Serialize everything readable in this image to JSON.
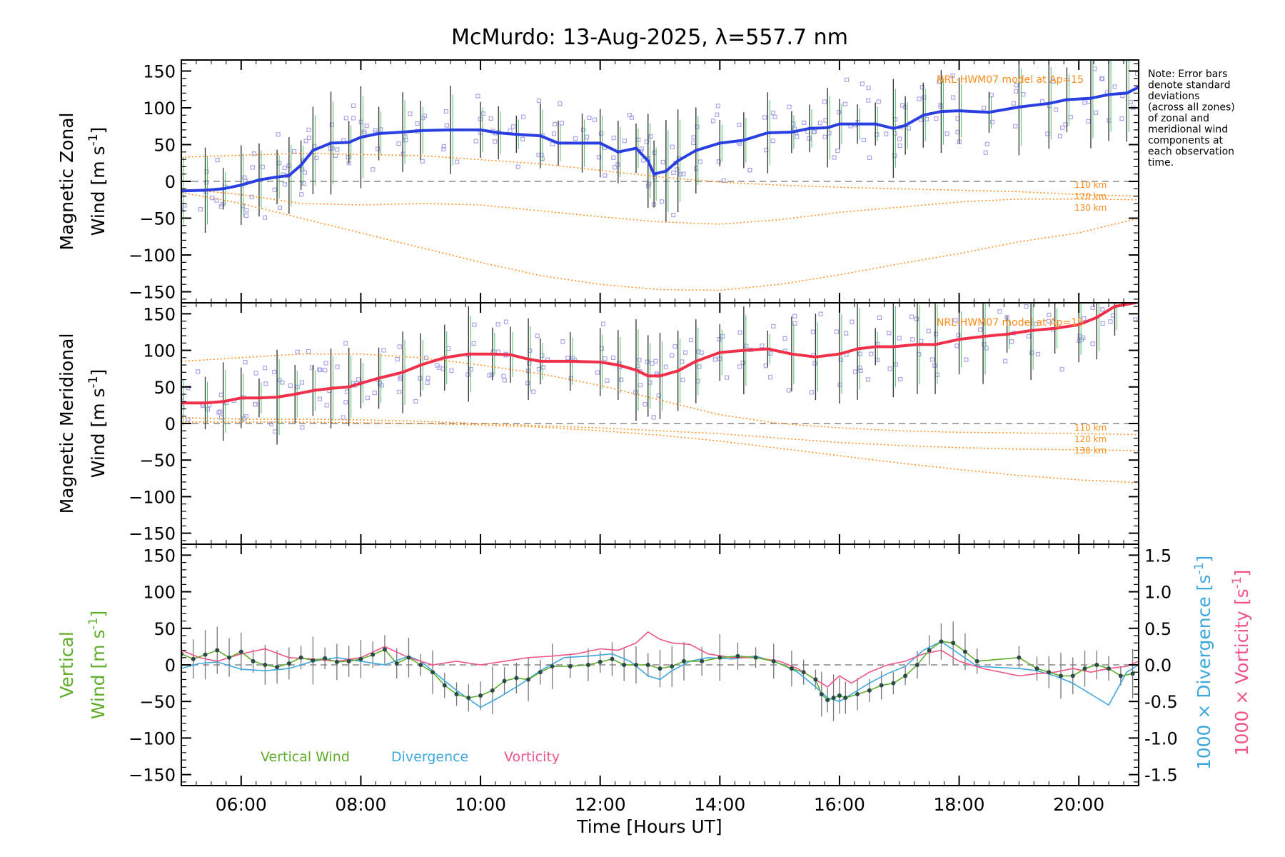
{
  "chart_data": {
    "type": "line",
    "title": "McMurdo: 13-Aug-2025, λ=557.7 nm",
    "xlabel": "Time [Hours UT]",
    "xlim": [
      5.0,
      21.0
    ],
    "xticks": [
      {
        "value": 6,
        "label": "06:00"
      },
      {
        "value": 8,
        "label": "08:00"
      },
      {
        "value": 10,
        "label": "10:00"
      },
      {
        "value": 12,
        "label": "12:00"
      },
      {
        "value": 14,
        "label": "14:00"
      },
      {
        "value": 16,
        "label": "16:00"
      },
      {
        "value": 18,
        "label": "18:00"
      },
      {
        "value": 20,
        "label": "20:00"
      }
    ],
    "note": [
      "Note: Error bars",
      "denote standard",
      "deviations",
      "(across all zones)",
      "of zonal and",
      "meridional wind",
      "components at",
      "each observation",
      "time."
    ],
    "colors": {
      "zonal": "#2a3fe0",
      "meridional": "#f0304a",
      "vertical": "#5fae2a",
      "divergence": "#3ea8de",
      "vorticity": "#f0558a",
      "model": "#ff8c1a",
      "scatter": "#a9a6e8",
      "zero_line": "#9a9a9a",
      "error_bar": "#3c3c3c"
    },
    "panels": [
      {
        "id": "zonal",
        "ylabel": [
          "Magnetic Zonal",
          "Wind [m s",
          "-1",
          "]"
        ],
        "ylim": [
          -165,
          165
        ],
        "yticks": [
          150,
          100,
          50,
          0,
          -50,
          -100,
          -150
        ],
        "model_label": "NRL-HWM07 model at Ap=15",
        "model_heights": [
          "110 km",
          "120 km",
          "130 km"
        ],
        "series": [
          {
            "name": "Zonal Wind",
            "color": "#2a3fe0",
            "x": [
              5.0,
              5.4,
              5.7,
              6.0,
              6.3,
              6.6,
              6.8,
              7.0,
              7.2,
              7.5,
              7.8,
              8.0,
              8.3,
              8.7,
              9.0,
              9.5,
              10.0,
              10.3,
              10.6,
              11.0,
              11.3,
              11.7,
              12.0,
              12.3,
              12.6,
              12.8,
              12.9,
              13.1,
              13.3,
              13.6,
              14.0,
              14.4,
              14.8,
              15.2,
              15.5,
              15.8,
              16.0,
              16.3,
              16.6,
              16.9,
              17.1,
              17.4,
              17.7,
              18.0,
              18.5,
              19.0,
              19.5,
              19.8,
              20.2,
              20.5,
              20.8,
              21.0
            ],
            "values": [
              -13,
              -12,
              -10,
              -5,
              2,
              6,
              8,
              22,
              42,
              52,
              53,
              60,
              65,
              67,
              69,
              70,
              70,
              66,
              64,
              62,
              52,
              52,
              52,
              40,
              45,
              28,
              10,
              14,
              28,
              42,
              52,
              56,
              66,
              67,
              72,
              73,
              78,
              78,
              78,
              72,
              76,
              90,
              95,
              96,
              94,
              101,
              106,
              111,
              113,
              118,
              120,
              128
            ]
          },
          {
            "name": "HWM07 110 km",
            "color": "#ff8c1a",
            "dotted": true,
            "x": [
              5,
              7,
              9,
              11,
              13,
              14,
              15,
              16,
              17,
              18,
              19,
              20,
              21
            ],
            "values": [
              33,
              38,
              35,
              24,
              6,
              -1,
              -5,
              -8,
              -10,
              -12,
              -14,
              -18,
              -20
            ]
          },
          {
            "name": "HWM07 120 km",
            "color": "#ff8c1a",
            "dotted": true,
            "x": [
              5,
              6,
              7,
              8,
              9,
              10,
              11,
              12,
              13,
              14,
              15,
              16,
              17,
              18,
              19,
              20,
              21
            ],
            "values": [
              -10,
              -18,
              -30,
              -32,
              -30,
              -32,
              -40,
              -48,
              -55,
              -58,
              -52,
              -42,
              -35,
              -28,
              -24,
              -24,
              -25
            ]
          },
          {
            "name": "HWM07 130 km",
            "color": "#ff8c1a",
            "dotted": true,
            "x": [
              5,
              6,
              7,
              8,
              9,
              10,
              11,
              12,
              13,
              14,
              15,
              16,
              17,
              18,
              19,
              20,
              21
            ],
            "values": [
              -15,
              -30,
              -50,
              -70,
              -90,
              -110,
              -128,
              -140,
              -147,
              -148,
              -140,
              -127,
              -112,
              -98,
              -82,
              -70,
              -50
            ]
          }
        ]
      },
      {
        "id": "meridional",
        "ylabel": [
          "Magnetic Meridional",
          "Wind [m s",
          "-1",
          "]"
        ],
        "ylim": [
          -165,
          165
        ],
        "yticks": [
          150,
          100,
          50,
          0,
          -50,
          -100,
          -150
        ],
        "model_label": "NRL-HWM07 model at Ap=15",
        "model_heights": [
          "110 km",
          "120 km",
          "130 km"
        ],
        "series": [
          {
            "name": "Meridional Wind",
            "color": "#f0304a",
            "x": [
              5.0,
              5.4,
              5.7,
              6.0,
              6.3,
              6.6,
              6.9,
              7.2,
              7.5,
              7.8,
              8.0,
              8.3,
              8.7,
              9.0,
              9.4,
              9.8,
              10.2,
              10.5,
              10.8,
              11.0,
              11.5,
              12.0,
              12.3,
              12.6,
              12.8,
              13.0,
              13.3,
              13.6,
              14.0,
              14.4,
              14.8,
              15.2,
              15.6,
              16.0,
              16.3,
              16.6,
              16.9,
              17.3,
              17.6,
              18.0,
              18.4,
              18.8,
              19.2,
              19.6,
              20.0,
              20.3,
              20.6,
              21.0
            ],
            "values": [
              28,
              28,
              30,
              35,
              35,
              36,
              40,
              45,
              48,
              50,
              55,
              62,
              70,
              80,
              90,
              95,
              95,
              94,
              88,
              85,
              85,
              84,
              80,
              73,
              65,
              65,
              72,
              85,
              97,
              100,
              102,
              95,
              91,
              95,
              102,
              105,
              105,
              108,
              108,
              115,
              119,
              122,
              127,
              130,
              135,
              145,
              160,
              166
            ]
          },
          {
            "name": "HWM07 110 km",
            "color": "#ff8c1a",
            "dotted": true,
            "x": [
              5,
              6,
              7,
              8,
              9,
              10,
              11,
              12,
              13,
              14,
              15,
              16,
              17,
              18,
              19,
              20,
              21
            ],
            "values": [
              85,
              90,
              95,
              95,
              90,
              80,
              68,
              52,
              32,
              12,
              0,
              -6,
              -10,
              -12,
              -13,
              -14,
              -15
            ]
          },
          {
            "name": "HWM07 120 km",
            "color": "#ff8c1a",
            "dotted": true,
            "x": [
              5,
              6,
              7,
              8,
              9,
              10,
              11,
              12,
              13,
              14,
              15,
              16,
              17,
              18,
              19,
              20,
              21
            ],
            "values": [
              8,
              6,
              6,
              5,
              3,
              0,
              -3,
              -6,
              -10,
              -14,
              -20,
              -26,
              -30,
              -33,
              -35,
              -36,
              -37
            ]
          },
          {
            "name": "HWM07 130 km",
            "color": "#ff8c1a",
            "dotted": true,
            "x": [
              5,
              6,
              7,
              8,
              9,
              10,
              11,
              12,
              13,
              14,
              15,
              16,
              17,
              18,
              19,
              20,
              21
            ],
            "values": [
              2,
              2,
              2,
              1,
              0,
              -2,
              -5,
              -10,
              -16,
              -24,
              -34,
              -44,
              -54,
              -63,
              -71,
              -77,
              -81
            ]
          }
        ]
      },
      {
        "id": "vertical",
        "ylabel_left": [
          "Vertical",
          "Wind [m s",
          "-1",
          "]"
        ],
        "ylim": [
          -165,
          165
        ],
        "yticks": [
          150,
          100,
          50,
          0,
          -50,
          -100,
          -150
        ],
        "ylim_right": [
          -1.65,
          1.65
        ],
        "yticks_right": [
          "1.5",
          "1.0",
          "0.5",
          "0.0",
          "-0.5",
          "-1.0",
          "-1.5"
        ],
        "ylabel_right_1": [
          "1000 × Divergence [s",
          "-1",
          "]"
        ],
        "ylabel_right_2": [
          "1000 × Vorticity [s",
          "-1",
          "]"
        ],
        "legend": [
          "Vertical Wind",
          "Divergence",
          "Vorticity"
        ],
        "series": [
          {
            "name": "Vertical Wind",
            "color": "#5fae2a",
            "x": [
              5.0,
              5.2,
              5.4,
              5.6,
              5.8,
              6.0,
              6.2,
              6.4,
              6.6,
              6.8,
              7.0,
              7.2,
              7.4,
              7.6,
              7.8,
              8.0,
              8.2,
              8.4,
              8.6,
              8.8,
              9.0,
              9.2,
              9.4,
              9.6,
              9.8,
              10.0,
              10.2,
              10.4,
              10.6,
              10.8,
              11.0,
              11.2,
              11.5,
              11.8,
              12.0,
              12.2,
              12.4,
              12.6,
              12.8,
              13.0,
              13.2,
              13.4,
              13.7,
              14.0,
              14.3,
              14.6,
              14.9,
              15.2,
              15.4,
              15.6,
              15.7,
              15.8,
              15.9,
              16.0,
              16.1,
              16.3,
              16.5,
              16.7,
              16.9,
              17.1,
              17.3,
              17.5,
              17.7,
              17.9,
              18.1,
              18.3,
              19.0,
              19.3,
              19.5,
              19.7,
              19.9,
              20.1,
              20.3,
              20.5,
              20.7,
              20.9
            ],
            "values": [
              15,
              8,
              14,
              20,
              10,
              18,
              5,
              0,
              -3,
              2,
              10,
              6,
              9,
              4,
              5,
              8,
              14,
              21,
              2,
              10,
              0,
              -10,
              -28,
              -40,
              -45,
              -42,
              -35,
              -22,
              -18,
              -20,
              -10,
              -2,
              -2,
              0,
              4,
              8,
              0,
              0,
              0,
              -5,
              -2,
              5,
              5,
              10,
              12,
              10,
              5,
              -5,
              -10,
              -20,
              -40,
              -48,
              -45,
              -42,
              -45,
              -40,
              -35,
              -28,
              -25,
              -15,
              0,
              20,
              32,
              30,
              18,
              5,
              10,
              -5,
              -10,
              -15,
              -15,
              -5,
              0,
              -5,
              -15,
              -12
            ]
          },
          {
            "name": "Divergence",
            "color": "#3ea8de",
            "right_axis": true,
            "x": [
              5.0,
              5.3,
              5.6,
              6.0,
              6.4,
              6.8,
              7.2,
              7.6,
              8.0,
              8.4,
              8.8,
              9.0,
              9.3,
              9.6,
              10.0,
              10.3,
              10.7,
              11.0,
              11.4,
              11.8,
              12.2,
              12.5,
              12.8,
              13.0,
              13.2,
              13.5,
              13.8,
              14.2,
              14.6,
              15.0,
              15.3,
              15.6,
              15.8,
              16.0,
              16.2,
              16.5,
              16.8,
              17.1,
              17.4,
              17.7,
              18.0,
              18.3,
              19.0,
              19.3,
              19.6,
              19.9,
              20.2,
              20.5,
              20.8,
              21.0
            ],
            "values": [
              -0.05,
              0.02,
              0.04,
              -0.06,
              -0.08,
              -0.05,
              0.05,
              0.1,
              0.05,
              0.0,
              0.12,
              0.05,
              -0.15,
              -0.35,
              -0.58,
              -0.45,
              -0.25,
              -0.08,
              0.1,
              0.12,
              0.15,
              0.05,
              -0.15,
              -0.2,
              -0.08,
              0.05,
              0.1,
              0.08,
              0.12,
              0.02,
              -0.1,
              -0.3,
              -0.45,
              -0.5,
              -0.4,
              -0.25,
              -0.12,
              -0.02,
              0.2,
              0.32,
              0.15,
              -0.02,
              -0.05,
              -0.08,
              -0.15,
              -0.25,
              -0.4,
              -0.55,
              -0.1,
              0.0
            ]
          },
          {
            "name": "Vorticity",
            "color": "#f0558a",
            "right_axis": true,
            "x": [
              5.0,
              5.3,
              5.6,
              6.0,
              6.4,
              6.8,
              7.2,
              7.6,
              8.0,
              8.4,
              8.8,
              9.2,
              9.6,
              10.0,
              10.4,
              10.8,
              11.2,
              11.6,
              12.0,
              12.3,
              12.6,
              12.8,
              13.0,
              13.2,
              13.5,
              13.8,
              14.2,
              14.6,
              15.0,
              15.3,
              15.6,
              15.8,
              16.0,
              16.2,
              16.5,
              16.8,
              17.1,
              17.4,
              17.7,
              18.0,
              18.4,
              19.0,
              19.3,
              19.6,
              19.9,
              20.2,
              20.5,
              20.8,
              21.0
            ],
            "values": [
              0.2,
              0.1,
              0.05,
              0.15,
              0.22,
              0.1,
              0.08,
              0.05,
              0.1,
              0.25,
              0.1,
              0.0,
              0.05,
              0.0,
              0.05,
              0.1,
              0.12,
              0.15,
              0.22,
              0.2,
              0.3,
              0.45,
              0.35,
              0.3,
              0.28,
              0.15,
              0.1,
              0.1,
              0.05,
              -0.05,
              -0.2,
              -0.3,
              -0.15,
              -0.25,
              -0.1,
              0.0,
              0.05,
              0.15,
              0.2,
              0.05,
              -0.05,
              -0.15,
              -0.12,
              -0.1,
              -0.05,
              -0.1,
              -0.05,
              -0.02,
              0.05
            ]
          }
        ]
      }
    ]
  }
}
